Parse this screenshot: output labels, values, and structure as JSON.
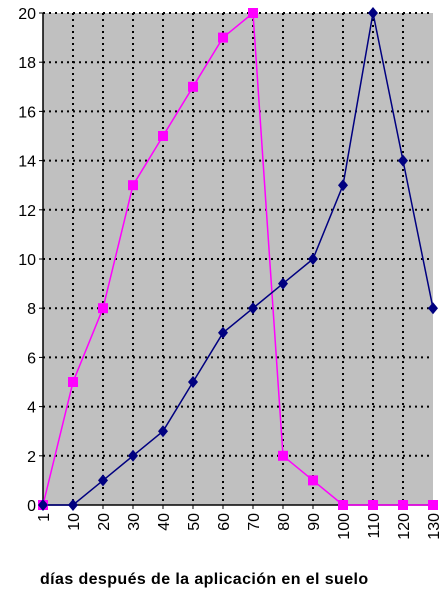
{
  "chart_data": {
    "type": "line",
    "title": "",
    "xlabel": "días después de la aplicación en el suelo",
    "ylabel": "",
    "categories": [
      "1",
      "10",
      "20",
      "30",
      "40",
      "50",
      "60",
      "70",
      "80",
      "90",
      "100",
      "110",
      "120",
      "130"
    ],
    "yticks": [
      "0",
      "2",
      "4",
      "6",
      "8",
      "10",
      "12",
      "14",
      "16",
      "18",
      "20"
    ],
    "ylim": [
      0,
      20
    ],
    "grid": true,
    "legend": "none",
    "series": [
      {
        "color": "#ff00ff",
        "marker": "square",
        "values": [
          0,
          5,
          8,
          13,
          15,
          17,
          19,
          20,
          2,
          1,
          0,
          0,
          0,
          0
        ]
      },
      {
        "color": "#000080",
        "marker": "diamond",
        "values": [
          0,
          0,
          1,
          2,
          3,
          5,
          7,
          8,
          9,
          10,
          13,
          20,
          14,
          8
        ]
      }
    ],
    "colors": {
      "plot_background": "#c0c0c0",
      "grid": "#000000"
    }
  }
}
